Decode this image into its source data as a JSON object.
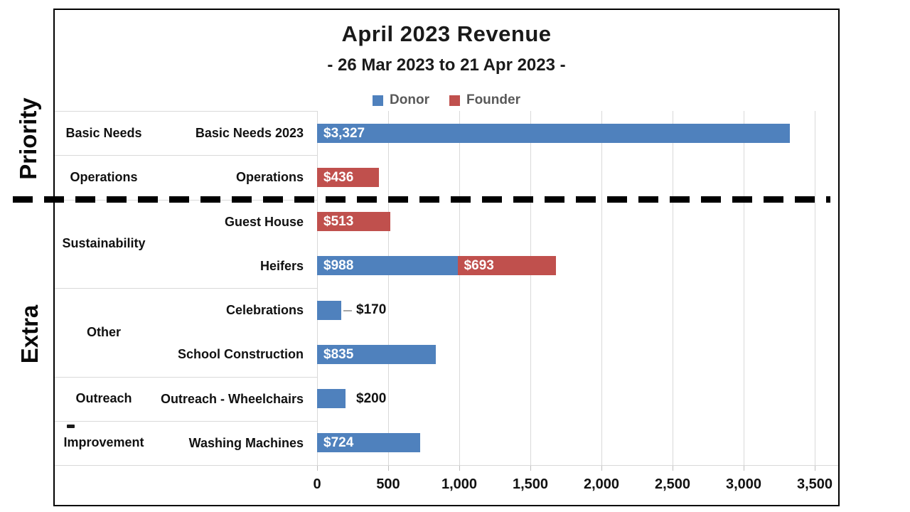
{
  "chart_data": {
    "type": "bar",
    "orientation": "horizontal",
    "stacked": true,
    "title": "April 2023 Revenue",
    "subtitle": "- 26 Mar 2023 to 21 Apr 2023 -",
    "legend": {
      "position": "top",
      "entries": [
        {
          "name": "Donor",
          "color": "#4F81BD"
        },
        {
          "name": "Founder",
          "color": "#C0504D"
        }
      ]
    },
    "x_axis": {
      "min": 0,
      "max": 3500,
      "tick_step": 500,
      "tick_labels": [
        "0",
        "500",
        "1,000",
        "1,500",
        "2,000",
        "2,500",
        "3,000",
        "3,500"
      ],
      "grid": true
    },
    "sections": [
      {
        "label": "Priority",
        "rows": [
          0,
          1
        ]
      },
      {
        "label": "Extra",
        "rows": [
          2,
          3,
          4,
          5,
          6,
          7
        ]
      }
    ],
    "separator_after_row": 1,
    "groups": [
      {
        "label": "Basic Needs",
        "span": 1
      },
      {
        "label": "Operations",
        "span": 1
      },
      {
        "label": "Sustainability",
        "span": 2
      },
      {
        "label": "Other",
        "span": 2
      },
      {
        "label": "Outreach",
        "span": 1
      },
      {
        "label": "Improvement",
        "span": 1
      }
    ],
    "rows": [
      {
        "label": "Basic Needs 2023",
        "segments": [
          {
            "series": "Donor",
            "value": 3327,
            "label": "$3,327",
            "label_pos": "inside"
          }
        ]
      },
      {
        "label": "Operations",
        "segments": [
          {
            "series": "Founder",
            "value": 436,
            "label": "$436",
            "label_pos": "inside"
          }
        ]
      },
      {
        "label": "Guest House",
        "segments": [
          {
            "series": "Founder",
            "value": 513,
            "label": "$513",
            "label_pos": "inside"
          }
        ]
      },
      {
        "label": "Heifers",
        "segments": [
          {
            "series": "Donor",
            "value": 988,
            "label": "$988",
            "label_pos": "inside"
          },
          {
            "series": "Founder",
            "value": 693,
            "label": "$693",
            "label_pos": "inside"
          }
        ]
      },
      {
        "label": "Celebrations",
        "segments": [
          {
            "series": "Donor",
            "value": 170,
            "label": "$170",
            "label_pos": "outside",
            "leader": true
          }
        ]
      },
      {
        "label": "School Construction",
        "segments": [
          {
            "series": "Donor",
            "value": 835,
            "label": "$835",
            "label_pos": "inside"
          }
        ]
      },
      {
        "label": "Outreach - Wheelchairs",
        "segments": [
          {
            "series": "Donor",
            "value": 200,
            "label": "$200",
            "label_pos": "outside"
          }
        ]
      },
      {
        "label": "Washing Machines",
        "segments": [
          {
            "series": "Donor",
            "value": 724,
            "label": "$724",
            "label_pos": "inside"
          }
        ]
      }
    ],
    "colors": {
      "donor": "#4F81BD",
      "founder": "#C0504D",
      "gridline": "#D9D9D9",
      "tick_mark": "#BFBFBF",
      "legend_text": "#595959",
      "value_label_inside": "#FFFFFF",
      "value_label_outside": "#111111",
      "frame_border": "#000000"
    }
  }
}
